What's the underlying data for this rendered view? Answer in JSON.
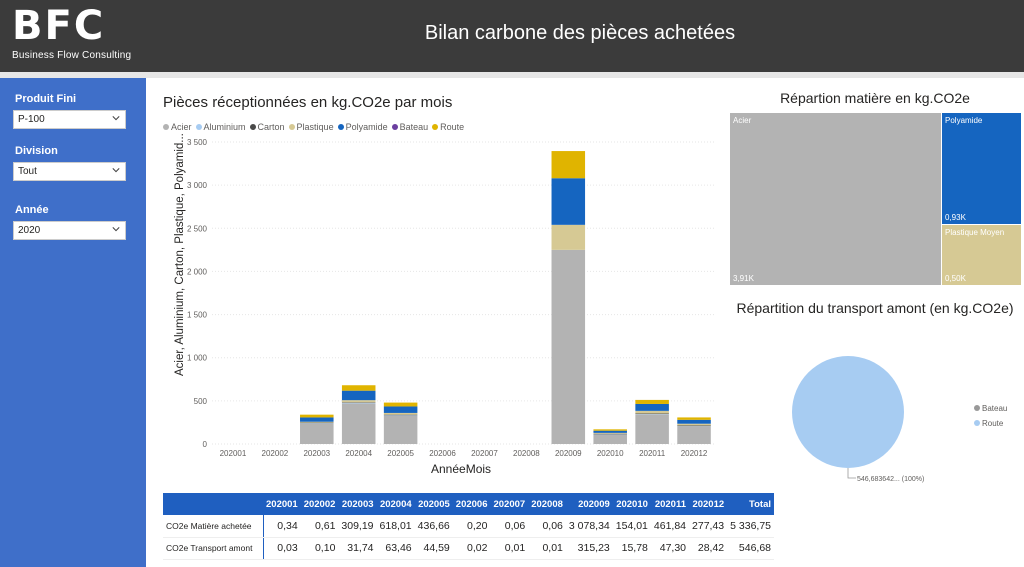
{
  "header": {
    "logo_letters": "BFC",
    "logo_tagline": "Business Flow Consulting",
    "title": "Bilan carbone des pièces achetées"
  },
  "filters": [
    {
      "label": "Produit Fini",
      "value": "P-100"
    },
    {
      "label": "Division",
      "value": "Tout"
    },
    {
      "label": "Année",
      "value": "2020"
    }
  ],
  "bar_chart": {
    "title": "Pièces réceptionnées en kg.CO2e par mois",
    "ylabel": "Acier, Aluminium, Carton, Plastique, Polyamid...",
    "xlabel": "AnnéeMois"
  },
  "treemap": {
    "title": "Répartion matière en kg.CO2e",
    "tiles": [
      {
        "name": "Acier",
        "value_label": "3,91K",
        "color": "#b3b3b3"
      },
      {
        "name": "Polyamide",
        "value_label": "0,93K",
        "color": "#1565c0"
      },
      {
        "name": "Plastique Moyen",
        "value_label": "0,50K",
        "color": "#d6c994"
      }
    ]
  },
  "pie": {
    "title": "Répartition du transport amont (en kg.CO2e)",
    "slice_label": "546,683642... (100%)",
    "legend": [
      {
        "name": "Bateau",
        "color": "#999999"
      },
      {
        "name": "Route",
        "color": "#a7ccf2"
      }
    ]
  },
  "table": {
    "columns": [
      "202001",
      "202002",
      "202003",
      "202004",
      "202005",
      "202006",
      "202007",
      "202008",
      "202009",
      "202010",
      "202011",
      "202012",
      "Total"
    ],
    "rows": [
      {
        "label": "CO2e Matière achetée",
        "values": [
          "0,34",
          "0,61",
          "309,19",
          "618,01",
          "436,66",
          "0,20",
          "0,06",
          "0,06",
          "3 078,34",
          "154,01",
          "461,84",
          "277,43",
          "5 336,75"
        ]
      },
      {
        "label": "CO2e Transport amont",
        "values": [
          "0,03",
          "0,10",
          "31,74",
          "63,46",
          "44,59",
          "0,02",
          "0,01",
          "0,01",
          "315,23",
          "15,78",
          "47,30",
          "28,42",
          "546,68"
        ]
      }
    ]
  },
  "chart_data": [
    {
      "type": "bar",
      "stacked": true,
      "title": "Pièces réceptionnées en kg.CO2e par mois",
      "xlabel": "AnnéeMois",
      "ylabel": "Acier, Aluminium, Carton, Plastique, Polyamid...",
      "ylim": [
        0,
        3500
      ],
      "yticks": [
        0,
        500,
        1000,
        1500,
        2000,
        2500,
        3000,
        3500
      ],
      "ytick_labels": [
        "0",
        "500",
        "1 000",
        "1 500",
        "2 000",
        "2 500",
        "3 000",
        "3 500"
      ],
      "grid": true,
      "legend_position": "top-left",
      "categories": [
        "202001",
        "202002",
        "202003",
        "202004",
        "202005",
        "202006",
        "202007",
        "202008",
        "202009",
        "202010",
        "202011",
        "202012"
      ],
      "series": [
        {
          "name": "Acier",
          "color": "#b3b3b3",
          "values": [
            0,
            0,
            240,
            470,
            330,
            0,
            0,
            0,
            2250,
            115,
            345,
            210
          ]
        },
        {
          "name": "Aluminium",
          "color": "#a7ccf2",
          "values": [
            0,
            0,
            5,
            8,
            6,
            0,
            0,
            0,
            0,
            2,
            5,
            3
          ]
        },
        {
          "name": "Carton",
          "color": "#4a4a4a",
          "values": [
            0,
            0,
            3,
            5,
            4,
            0,
            0,
            0,
            0,
            2,
            4,
            2
          ]
        },
        {
          "name": "Plastique",
          "color": "#d6c994",
          "values": [
            0,
            0,
            10,
            25,
            20,
            0,
            0,
            0,
            290,
            10,
            30,
            20
          ]
        },
        {
          "name": "Polyamide",
          "color": "#1565c0",
          "values": [
            0,
            0,
            50,
            110,
            75,
            0,
            0,
            0,
            540,
            25,
            80,
            45
          ]
        },
        {
          "name": "Bateau",
          "color": "#6b3fa0",
          "values": [
            0,
            0,
            0,
            0,
            0,
            0,
            0,
            0,
            0,
            0,
            0,
            0
          ]
        },
        {
          "name": "Route",
          "color": "#e0b400",
          "values": [
            0,
            0,
            32,
            63,
            45,
            0,
            0,
            0,
            315,
            16,
            47,
            28
          ]
        }
      ]
    },
    {
      "type": "treemap",
      "title": "Répartion matière en kg.CO2e",
      "categories": [
        "Acier",
        "Polyamide",
        "Plastique Moyen"
      ],
      "values": [
        3910,
        930,
        500
      ]
    },
    {
      "type": "pie",
      "title": "Répartition du transport amont (en kg.CO2e)",
      "categories": [
        "Bateau",
        "Route"
      ],
      "values": [
        0,
        546.683642
      ],
      "legend_position": "right"
    }
  ]
}
